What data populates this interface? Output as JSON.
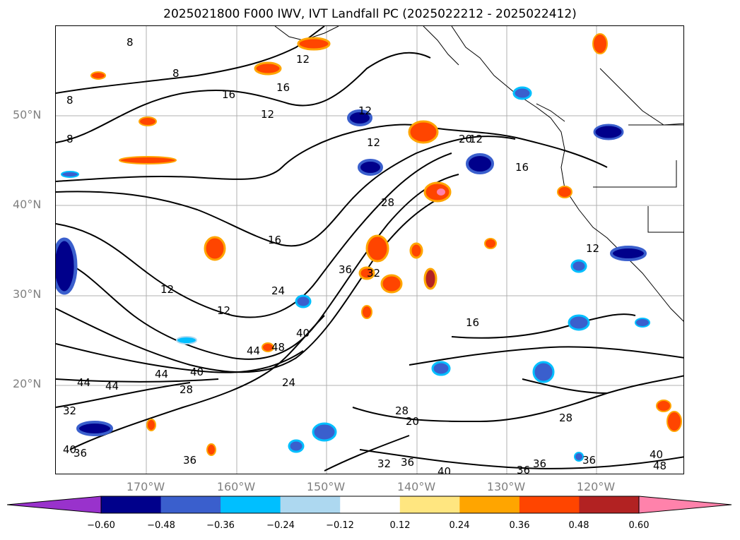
{
  "title": "2025021800 F000 IWV, IVT Landfall PC (2025022212 - 2025022412)",
  "lat_labels": [
    "50°N",
    "40°N",
    "30°N",
    "20°N"
  ],
  "lon_labels": [
    "170°W",
    "160°W",
    "150°W",
    "140°W",
    "130°W",
    "120°W"
  ],
  "colorbar": {
    "ticks": [
      "−0.60",
      "−0.48",
      "−0.36",
      "−0.24",
      "−0.12",
      "0.12",
      "0.24",
      "0.36",
      "0.48",
      "0.60"
    ],
    "colors": [
      "#9932cc",
      "#00008b",
      "#3a5fcd",
      "#00bfff",
      "#add8f0",
      "#ffffff",
      "#ffe680",
      "#ffa500",
      "#ff4500",
      "#b22222",
      "#ff82ab"
    ],
    "extend": "both"
  },
  "contour_labels": [
    "8",
    "12",
    "16",
    "20",
    "24",
    "28",
    "32",
    "36",
    "40",
    "44",
    "48"
  ]
}
